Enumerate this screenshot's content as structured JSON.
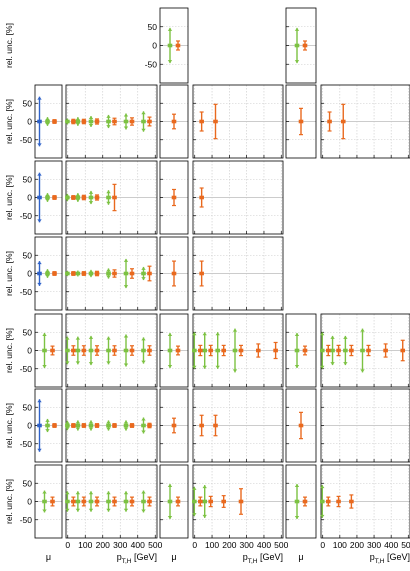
{
  "chart_data": {
    "type": "errorbar-grid",
    "ylabel": "rel. unc. [%]",
    "ylim": [
      -100,
      100
    ],
    "yticks": [
      -50,
      0,
      50
    ],
    "pt_xlim": [
      -10,
      510
    ],
    "pt_xticks": [
      0,
      100,
      200,
      300,
      400,
      500
    ],
    "x_mu_label": "μ",
    "x_pt_label_main": "p",
    "x_pt_label_sub": "T,H",
    "x_pt_label_unit": " [GeV]",
    "colors": {
      "green": "#7cc242",
      "orange": "#e9691e",
      "blue": "#2f62c9"
    },
    "row_panels": [
      [
        "none",
        "none",
        "mu",
        "none",
        "mu",
        "none"
      ],
      [
        "mu",
        "pt",
        "mu",
        "pt",
        "mu",
        "pt"
      ],
      [
        "mu",
        "pt",
        "mu",
        "pt",
        "none",
        "none"
      ],
      [
        "mu",
        "pt",
        "mu",
        "pt",
        "none",
        "none"
      ],
      [
        "mu",
        "pt",
        "mu",
        "pt",
        "mu",
        "pt"
      ],
      [
        "mu",
        "pt",
        "mu",
        "pt",
        "mu",
        "pt"
      ],
      [
        "mu",
        "pt",
        "mu",
        "pt",
        "mu",
        "pt"
      ]
    ],
    "panels": [
      {
        "row": 0,
        "col": 2,
        "series": [
          {
            "color": "green",
            "x": 0,
            "y": 0,
            "err": 47
          },
          {
            "color": "orange",
            "x": 0,
            "y": 0,
            "err": 12
          }
        ]
      },
      {
        "row": 0,
        "col": 4,
        "series": [
          {
            "color": "green",
            "x": 0,
            "y": 0,
            "err": 47
          },
          {
            "color": "orange",
            "x": 0,
            "y": 0,
            "err": 12
          }
        ]
      },
      {
        "row": 1,
        "col": 0,
        "series": [
          {
            "color": "blue",
            "x": 0,
            "y": 0,
            "err": 68
          },
          {
            "color": "green",
            "x": 0,
            "y": 0,
            "err": 12
          },
          {
            "color": "orange",
            "x": 0,
            "y": 0,
            "err": 5
          }
        ]
      },
      {
        "row": 1,
        "col": 1,
        "series": [
          {
            "color": "green",
            "x": [
              15,
              75,
              150,
              250,
              350,
              450
            ],
            "y": [
              0,
              0,
              0,
              0,
              0,
              0
            ],
            "err": [
              8,
              12,
              15,
              18,
              22,
              28
            ]
          },
          {
            "color": "orange",
            "x": [
              15,
              75,
              150,
              250,
              350,
              450
            ],
            "y": [
              0,
              0,
              0,
              0,
              0,
              0
            ],
            "err": [
              6,
              6,
              7,
              9,
              10,
              12
            ]
          }
        ]
      },
      {
        "row": 1,
        "col": 2,
        "series": [
          {
            "color": "orange",
            "x": 0,
            "y": 0,
            "err": 20
          }
        ]
      },
      {
        "row": 1,
        "col": 3,
        "series": [
          {
            "color": "orange",
            "x": [
              40,
              120
            ],
            "y": [
              0,
              0
            ],
            "err": [
              26,
              47
            ]
          }
        ]
      },
      {
        "row": 1,
        "col": 4,
        "series": [
          {
            "color": "orange",
            "x": 0,
            "y": 0,
            "err": 36
          }
        ]
      },
      {
        "row": 1,
        "col": 5,
        "series": [
          {
            "color": "orange",
            "x": [
              40,
              120
            ],
            "y": [
              0,
              0
            ],
            "err": [
              26,
              47
            ]
          }
        ]
      },
      {
        "row": 2,
        "col": 0,
        "series": [
          {
            "color": "blue",
            "x": 0,
            "y": 0,
            "err": 68
          },
          {
            "color": "green",
            "x": 0,
            "y": 0,
            "err": 12
          },
          {
            "color": "orange",
            "x": 0,
            "y": 0,
            "err": 5
          }
        ]
      },
      {
        "row": 2,
        "col": 1,
        "series": [
          {
            "color": "green",
            "x": [
              15,
              75,
              150,
              250
            ],
            "y": [
              0,
              0,
              0,
              0
            ],
            "err": [
              10,
              12,
              18,
              20
            ]
          },
          {
            "color": "orange",
            "x": [
              15,
              75,
              150,
              250
            ],
            "y": [
              0,
              0,
              0,
              0
            ],
            "err": [
              5,
              6,
              7,
              36
            ]
          }
        ]
      },
      {
        "row": 2,
        "col": 2,
        "series": [
          {
            "color": "orange",
            "x": 0,
            "y": 0,
            "err": 22
          }
        ]
      },
      {
        "row": 2,
        "col": 3,
        "series": [
          {
            "color": "orange",
            "x": [
              40
            ],
            "y": [
              0
            ],
            "err": [
              26
            ]
          }
        ]
      },
      {
        "row": 3,
        "col": 0,
        "series": [
          {
            "color": "blue",
            "x": 0,
            "y": 0,
            "err": 34
          },
          {
            "color": "green",
            "x": 0,
            "y": 0,
            "err": 12
          },
          {
            "color": "orange",
            "x": 0,
            "y": 0,
            "err": 5
          }
        ]
      },
      {
        "row": 3,
        "col": 1,
        "series": [
          {
            "color": "green",
            "x": [
              15,
              75,
              150,
              250,
              350,
              450
            ],
            "y": [
              0,
              0,
              0,
              0,
              0,
              0
            ],
            "err": [
              7,
              8,
              10,
              14,
              40,
              18
            ]
          },
          {
            "color": "orange",
            "x": [
              15,
              75,
              150,
              250,
              350,
              450
            ],
            "y": [
              0,
              0,
              0,
              0,
              0,
              0
            ],
            "err": [
              5,
              5,
              6,
              10,
              13,
              20
            ]
          }
        ]
      },
      {
        "row": 3,
        "col": 2,
        "series": [
          {
            "color": "orange",
            "x": 0,
            "y": 0,
            "err": 34
          }
        ]
      },
      {
        "row": 3,
        "col": 3,
        "series": [
          {
            "color": "orange",
            "x": [
              40
            ],
            "y": [
              0
            ],
            "err": [
              34
            ]
          }
        ]
      },
      {
        "row": 4,
        "col": 0,
        "series": [
          {
            "color": "green",
            "x": 0,
            "y": 0,
            "err": 48
          },
          {
            "color": "orange",
            "x": 0,
            "y": 0,
            "err": 12
          }
        ]
      },
      {
        "row": 4,
        "col": 1,
        "series": [
          {
            "color": "green",
            "x": [
              15,
              75,
              150,
              250,
              350,
              450
            ],
            "y": [
              0,
              0,
              0,
              0,
              0,
              0
            ],
            "err": [
              38,
              38,
              40,
              38,
              44,
              36
            ]
          },
          {
            "color": "orange",
            "x": [
              15,
              75,
              150,
              250,
              350,
              450
            ],
            "y": [
              0,
              0,
              0,
              0,
              0,
              0
            ],
            "err": [
              13,
              13,
              13,
              13,
              13,
              13
            ]
          }
        ]
      },
      {
        "row": 4,
        "col": 2,
        "series": [
          {
            "color": "green",
            "x": 0,
            "y": 0,
            "err": 48
          },
          {
            "color": "orange",
            "x": 0,
            "y": 0,
            "err": 12
          }
        ]
      },
      {
        "row": 4,
        "col": 3,
        "series": [
          {
            "color": "green",
            "x": [
              15,
              75,
              150,
              250,
              350,
              450
            ],
            "y": [
              0,
              0,
              0,
              0,
              0,
              0
            ],
            "err": [
              50,
              50,
              50,
              60,
              0,
              0
            ]
          },
          {
            "color": "orange",
            "x": [
              15,
              75,
              150,
              250,
              350,
              450
            ],
            "y": [
              0,
              0,
              0,
              0,
              0,
              0
            ],
            "err": [
              14,
              14,
              14,
              14,
              18,
              22
            ]
          }
        ]
      },
      {
        "row": 4,
        "col": 4,
        "series": [
          {
            "color": "green",
            "x": 0,
            "y": 0,
            "err": 48
          },
          {
            "color": "orange",
            "x": 0,
            "y": 0,
            "err": 12
          }
        ]
      },
      {
        "row": 4,
        "col": 5,
        "series": [
          {
            "color": "green",
            "x": [
              15,
              75,
              150,
              250,
              350,
              450
            ],
            "y": [
              0,
              0,
              0,
              0,
              0,
              0
            ],
            "err": [
              50,
              40,
              40,
              60,
              0,
              0
            ]
          },
          {
            "color": "orange",
            "x": [
              15,
              75,
              150,
              250,
              350,
              450
            ],
            "y": [
              0,
              0,
              0,
              0,
              0,
              0
            ],
            "err": [
              14,
              14,
              14,
              14,
              18,
              28
            ]
          }
        ]
      },
      {
        "row": 5,
        "col": 0,
        "series": [
          {
            "color": "blue",
            "x": 0,
            "y": 0,
            "err": 72
          },
          {
            "color": "green",
            "x": 0,
            "y": 0,
            "err": 18
          },
          {
            "color": "orange",
            "x": 0,
            "y": 0,
            "err": 5
          }
        ]
      },
      {
        "row": 5,
        "col": 1,
        "series": [
          {
            "color": "green",
            "x": [
              15,
              75,
              150,
              250,
              350,
              450
            ],
            "y": [
              0,
              0,
              0,
              0,
              0,
              0
            ],
            "err": [
              13,
              14,
              14,
              14,
              14,
              22
            ]
          },
          {
            "color": "orange",
            "x": [
              15,
              75,
              150,
              250,
              350,
              450
            ],
            "y": [
              0,
              0,
              0,
              0,
              0,
              0
            ],
            "err": [
              5,
              5,
              5,
              5,
              5,
              6
            ]
          }
        ]
      },
      {
        "row": 5,
        "col": 2,
        "series": [
          {
            "color": "orange",
            "x": 0,
            "y": 0,
            "err": 20
          }
        ]
      },
      {
        "row": 5,
        "col": 3,
        "series": [
          {
            "color": "orange",
            "x": [
              40,
              120
            ],
            "y": [
              0,
              0
            ],
            "err": [
              28,
              28
            ]
          }
        ]
      },
      {
        "row": 5,
        "col": 4,
        "series": [
          {
            "color": "orange",
            "x": 0,
            "y": 0,
            "err": 36
          }
        ]
      },
      {
        "row": 6,
        "col": 0,
        "series": [
          {
            "color": "green",
            "x": 0,
            "y": 0,
            "err": 30
          },
          {
            "color": "orange",
            "x": 0,
            "y": 0,
            "err": 12
          }
        ]
      },
      {
        "row": 6,
        "col": 1,
        "series": [
          {
            "color": "green",
            "x": [
              15,
              75,
              150,
              250,
              350,
              450
            ],
            "y": [
              0,
              0,
              0,
              0,
              0,
              0
            ],
            "err": [
              28,
              28,
              28,
              28,
              28,
              30
            ]
          },
          {
            "color": "orange",
            "x": [
              15,
              75,
              150,
              250,
              350,
              450
            ],
            "y": [
              0,
              0,
              0,
              0,
              0,
              0
            ],
            "err": [
              12,
              12,
              12,
              12,
              12,
              12
            ]
          }
        ]
      },
      {
        "row": 6,
        "col": 2,
        "series": [
          {
            "color": "green",
            "x": 0,
            "y": 0,
            "err": 48
          },
          {
            "color": "orange",
            "x": 0,
            "y": 0,
            "err": 12
          }
        ]
      },
      {
        "row": 6,
        "col": 3,
        "series": [
          {
            "color": "green",
            "x": [
              15,
              75
            ],
            "y": [
              0,
              0
            ],
            "err": [
              40,
              45
            ]
          },
          {
            "color": "orange",
            "x": [
              15,
              75,
              150,
              250
            ],
            "y": [
              0,
              0,
              0,
              0
            ],
            "err": [
              12,
              14,
              16,
              35
            ]
          }
        ]
      },
      {
        "row": 6,
        "col": 4,
        "series": [
          {
            "color": "green",
            "x": 0,
            "y": 0,
            "err": 48
          },
          {
            "color": "orange",
            "x": 0,
            "y": 0,
            "err": 12
          }
        ]
      },
      {
        "row": 6,
        "col": 5,
        "series": [
          {
            "color": "green",
            "x": [
              15
            ],
            "y": [
              0
            ],
            "err": [
              45
            ]
          },
          {
            "color": "orange",
            "x": [
              15,
              75,
              150
            ],
            "y": [
              0,
              0,
              0
            ],
            "err": [
              12,
              14,
              18
            ]
          }
        ]
      }
    ]
  }
}
